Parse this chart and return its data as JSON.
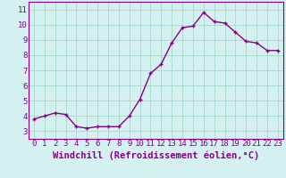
{
  "x": [
    0,
    1,
    2,
    3,
    4,
    5,
    6,
    7,
    8,
    9,
    10,
    11,
    12,
    13,
    14,
    15,
    16,
    17,
    18,
    19,
    20,
    21,
    22,
    23
  ],
  "y": [
    3.8,
    4.0,
    4.2,
    4.1,
    3.3,
    3.2,
    3.3,
    3.3,
    3.3,
    4.0,
    5.1,
    6.8,
    7.4,
    8.8,
    9.8,
    9.9,
    10.8,
    10.2,
    10.1,
    9.5,
    8.9,
    8.8,
    8.3,
    8.3
  ],
  "xlim": [
    -0.5,
    23.5
  ],
  "ylim": [
    2.5,
    11.5
  ],
  "xticks": [
    0,
    1,
    2,
    3,
    4,
    5,
    6,
    7,
    8,
    9,
    10,
    11,
    12,
    13,
    14,
    15,
    16,
    17,
    18,
    19,
    20,
    21,
    22,
    23
  ],
  "yticks": [
    3,
    4,
    5,
    6,
    7,
    8,
    9,
    10,
    11
  ],
  "xlabel": "Windchill (Refroidissement éolien,°C)",
  "line_color": "#880088",
  "marker": "+",
  "bg_color": "#d4f0f0",
  "grid_color": "#aaddcc",
  "tick_label_fontsize": 6.5,
  "xlabel_fontsize": 7.5
}
